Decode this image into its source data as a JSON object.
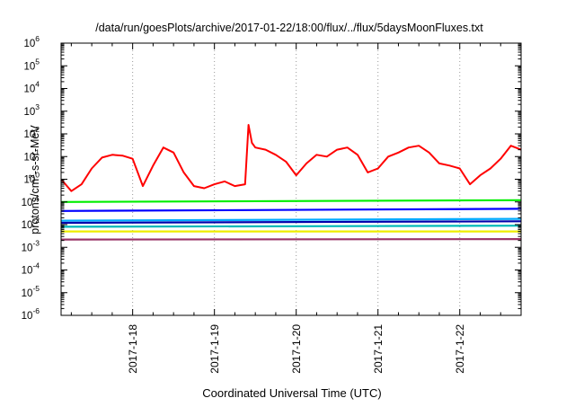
{
  "chart_data": {
    "type": "line",
    "title": "/data/run/goesPlots/archive/2017-01-22/18:00/flux/../flux/5daysMoonFluxes.txt",
    "xlabel": "Coordinated Universal Time (UTC)",
    "ylabel": {
      "prefix": "protons/cm",
      "sup": "2",
      "suffix": "-s-sr-MeV"
    },
    "yscale": "log",
    "ylim": [
      1e-06,
      1000000.0
    ],
    "y_ticks": [
      {
        "base": "10",
        "exp": "-6"
      },
      {
        "base": "10",
        "exp": "-5"
      },
      {
        "base": "10",
        "exp": "-4"
      },
      {
        "base": "10",
        "exp": "-3"
      },
      {
        "base": "10",
        "exp": "-2"
      },
      {
        "base": "10",
        "exp": "-1"
      },
      {
        "base": "10",
        "exp": "0"
      },
      {
        "base": "10",
        "exp": "1"
      },
      {
        "base": "10",
        "exp": "2"
      },
      {
        "base": "10",
        "exp": "3"
      },
      {
        "base": "10",
        "exp": "4"
      },
      {
        "base": "10",
        "exp": "5"
      },
      {
        "base": "10",
        "exp": "6"
      }
    ],
    "x_range": [
      "2017-01-17 03:00",
      "2017-01-22 18:00"
    ],
    "x_ticks": [
      "2017-1-18",
      "2017-1-19",
      "2017-1-20",
      "2017-1-21",
      "2017-1-22"
    ],
    "grid": "dotted vertical lines at x ticks",
    "legend": "none",
    "series": [
      {
        "color": "#ff0000",
        "x": [
          "2017-01-17 03:00",
          "2017-01-17 06:00",
          "2017-01-17 09:00",
          "2017-01-17 12:00",
          "2017-01-17 15:00",
          "2017-01-17 18:00",
          "2017-01-17 21:00",
          "2017-01-18 00:00",
          "2017-01-18 03:00",
          "2017-01-18 06:00",
          "2017-01-18 09:00",
          "2017-01-18 12:00",
          "2017-01-18 15:00",
          "2017-01-18 18:00",
          "2017-01-18 21:00",
          "2017-01-19 00:00",
          "2017-01-19 03:00",
          "2017-01-19 06:00",
          "2017-01-19 09:00",
          "2017-01-19 10:00",
          "2017-01-19 11:00",
          "2017-01-19 12:00",
          "2017-01-19 15:00",
          "2017-01-19 18:00",
          "2017-01-19 21:00",
          "2017-01-20 00:00",
          "2017-01-20 03:00",
          "2017-01-20 06:00",
          "2017-01-20 09:00",
          "2017-01-20 12:00",
          "2017-01-20 15:00",
          "2017-01-20 18:00",
          "2017-01-20 21:00",
          "2017-01-21 00:00",
          "2017-01-21 03:00",
          "2017-01-21 06:00",
          "2017-01-21 09:00",
          "2017-01-21 12:00",
          "2017-01-21 15:00",
          "2017-01-21 18:00",
          "2017-01-21 21:00",
          "2017-01-22 00:00",
          "2017-01-22 03:00",
          "2017-01-22 06:00",
          "2017-01-22 09:00",
          "2017-01-22 12:00",
          "2017-01-22 15:00",
          "2017-01-22 18:00"
        ],
        "values": [
          1.0,
          0.3,
          0.6,
          3,
          9,
          12,
          11,
          8,
          0.5,
          4,
          25,
          15,
          2,
          0.5,
          0.4,
          0.6,
          0.8,
          0.5,
          0.6,
          250,
          40,
          25,
          20,
          12,
          6,
          1.5,
          5,
          12,
          10,
          20,
          25,
          12,
          2,
          3,
          10,
          15,
          25,
          30,
          15,
          5,
          4,
          3,
          0.6,
          1.5,
          3,
          8,
          30,
          20
        ]
      },
      {
        "color": "#00ee00",
        "x": [
          "2017-01-17 03:00",
          "2017-01-22 18:00"
        ],
        "values": [
          0.1,
          0.12
        ]
      },
      {
        "color": "#0000ff",
        "x": [
          "2017-01-17 03:00",
          "2017-01-22 18:00"
        ],
        "values": [
          0.04,
          0.05
        ]
      },
      {
        "color": "#00aaff",
        "x": [
          "2017-01-17 03:00",
          "2017-01-22 18:00"
        ],
        "values": [
          0.015,
          0.018
        ]
      },
      {
        "color": "#0000aa",
        "x": [
          "2017-01-17 03:00",
          "2017-01-22 18:00"
        ],
        "values": [
          0.012,
          0.014
        ]
      },
      {
        "color": "#00b8b8",
        "x": [
          "2017-01-17 03:00",
          "2017-01-22 18:00"
        ],
        "values": [
          0.008,
          0.009
        ]
      },
      {
        "color": "#eeee00",
        "x": [
          "2017-01-17 03:00",
          "2017-01-22 18:00"
        ],
        "values": [
          0.005,
          0.005
        ]
      },
      {
        "color": "#993366",
        "x": [
          "2017-01-17 03:00",
          "2017-01-22 18:00"
        ],
        "values": [
          0.0022,
          0.0023
        ]
      }
    ]
  }
}
